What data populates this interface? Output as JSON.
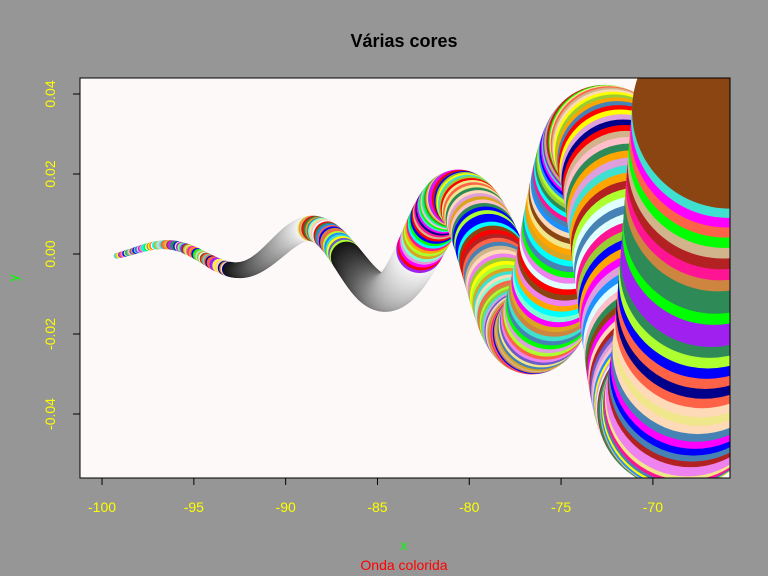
{
  "chart_data": {
    "type": "scatter",
    "title": "Várias cores",
    "subtitle": "Onda colorida",
    "xlabel": "x",
    "ylabel": "y",
    "xlim": [
      -101.2,
      -65.8
    ],
    "ylim": [
      -0.056,
      0.044
    ],
    "x_ticks": [
      -100,
      -95,
      -90,
      -85,
      -80,
      -75,
      -70
    ],
    "y_ticks": [
      -0.04,
      -0.02,
      0.0,
      0.02,
      0.04
    ],
    "x_tick_labels": [
      "-100",
      "-95",
      "-90",
      "-85",
      "-80",
      "-75",
      "-70"
    ],
    "y_tick_labels": [
      "-0.04",
      "-0.02",
      "0.00",
      "0.02",
      "0.04"
    ],
    "series": [
      {
        "x_start": -99.2,
        "x_end": -65.8,
        "wave_amplitude_start": 0.0015,
        "wave_amplitude_end": 0.05,
        "wave_period": 8.0,
        "circle_radius_start": 0.2,
        "circle_radius_end": 8.0,
        "point_count": 420,
        "colored_stripes": true,
        "gray_segments": [
          [
            -93.0,
            -88.7
          ],
          [
            -86.7,
            -82.7
          ]
        ]
      }
    ],
    "colors": {
      "background": "#969696",
      "plot_background": "#fdf9f8",
      "tick_label": "#ffff00",
      "xlabel": "#00ff00",
      "ylabel": "#00ff00",
      "subtitle": "#ff0000",
      "title": "#000000",
      "axis": "#000000",
      "palette": [
        "#ff0000",
        "#00ff00",
        "#0000ff",
        "#ffff00",
        "#ff00ff",
        "#00ffff",
        "#ffa500",
        "#a020f0",
        "#ffc0cb",
        "#8b4513",
        "#2e8b57",
        "#4682b4",
        "#9acd32",
        "#ff6347",
        "#40e0d0",
        "#ee82ee",
        "#d2b48c",
        "#1e90ff",
        "#b22222",
        "#daa520",
        "#7fffd4",
        "#dda0dd",
        "#f0e68c",
        "#6a5acd",
        "#ff1493",
        "#00008b",
        "#adff2f",
        "#ffdab9",
        "#e0ffff",
        "#cd853f"
      ]
    }
  }
}
